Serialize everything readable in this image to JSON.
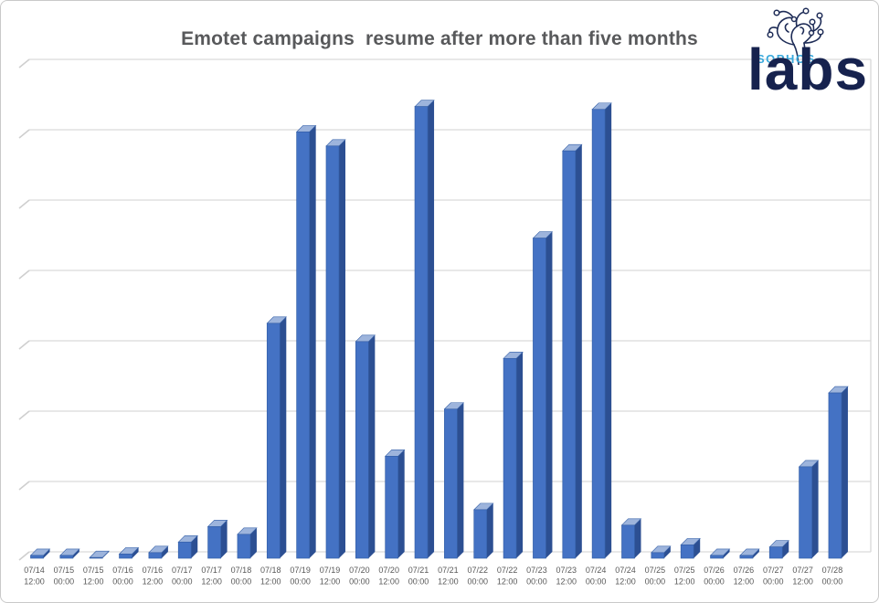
{
  "header": {
    "title": "Emotet campaigns  resume after more than five months",
    "title_color": "#58595b"
  },
  "logo": {
    "sophos_text": "SOPHOS",
    "labs_text": "labs",
    "sophos_color": "#3aa9dc",
    "labs_color": "#16224e",
    "brain_line_color": "#1e2c57"
  },
  "chart_data": {
    "type": "bar",
    "style": "3d-column",
    "title": "Emotet campaigns resume after more than five months",
    "xlabel": "",
    "ylabel": "",
    "y_axis_labels_visible": false,
    "ylim": [
      0,
      7
    ],
    "gridline_count": 8,
    "values_unit": "relative height in gridline intervals (no y-axis tick labels shown in chart)",
    "legend": "none",
    "categories": [
      "07/14 12:00",
      "07/15 00:00",
      "07/15 12:00",
      "07/16 00:00",
      "07/16 12:00",
      "07/17 00:00",
      "07/17 12:00",
      "07/18 00:00",
      "07/18 12:00",
      "07/19 00:00",
      "07/19 12:00",
      "07/20 00:00",
      "07/20 12:00",
      "07/21 00:00",
      "07/21 12:00",
      "07/22 00:00",
      "07/22 12:00",
      "07/23 00:00",
      "07/23 12:00",
      "07/24 00:00",
      "07/24 12:00",
      "07/25 00:00",
      "07/25 12:00",
      "07/26 00:00",
      "07/26 12:00",
      "07/27 00:00",
      "07/27 12:00",
      "07/28 00:00"
    ],
    "values": [
      0.04,
      0.04,
      0.01,
      0.06,
      0.08,
      0.23,
      0.45,
      0.34,
      3.34,
      6.06,
      5.86,
      3.08,
      1.45,
      6.42,
      2.12,
      0.69,
      2.84,
      4.55,
      5.79,
      6.38,
      0.47,
      0.08,
      0.19,
      0.04,
      0.04,
      0.16,
      1.3,
      2.35
    ],
    "colors": {
      "bar_front": "#4472c4",
      "bar_side": "#2c4f92",
      "bar_top": "#9db4dc",
      "bar_edge": "#3560a8",
      "gridline": "#d9d9d9",
      "wall_edge": "#cfcfcf",
      "tick_label": "#595959"
    }
  }
}
